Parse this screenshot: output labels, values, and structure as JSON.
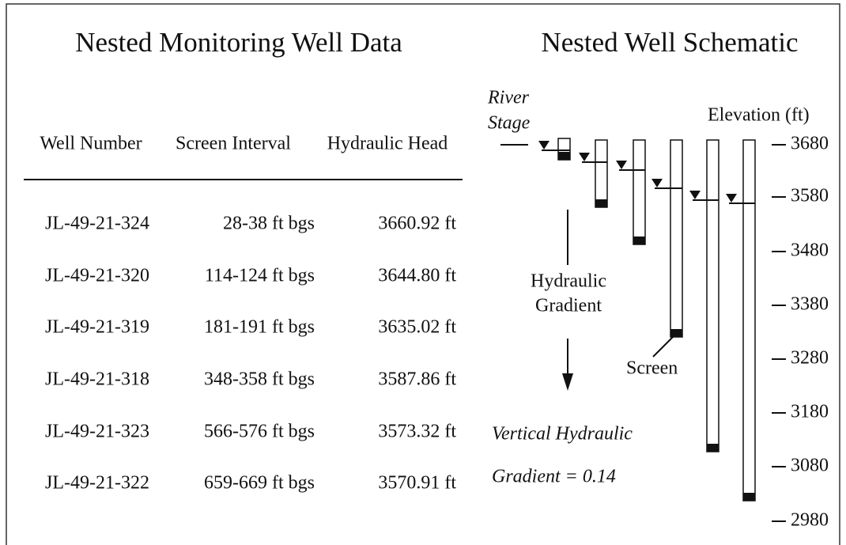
{
  "table": {
    "title": "Nested Monitoring Well Data",
    "columns": [
      "Well Number",
      "Screen Interval",
      "Hydraulic Head"
    ],
    "rows": [
      [
        "JL-49-21-324",
        "28-38 ft bgs",
        "3660.92 ft"
      ],
      [
        "JL-49-21-320",
        "114-124 ft bgs",
        "3644.80 ft"
      ],
      [
        "JL-49-21-319",
        "181-191 ft bgs",
        "3635.02 ft"
      ],
      [
        "JL-49-21-318",
        "348-358 ft bgs",
        "3587.86 ft"
      ],
      [
        "JL-49-21-323",
        "566-576 ft bgs",
        "3573.32 ft"
      ],
      [
        "JL-49-21-322",
        "659-669 ft bgs",
        "3570.91 ft"
      ]
    ]
  },
  "schematic": {
    "title": "Nested Well Schematic",
    "river_label": [
      "River",
      "Stage"
    ],
    "elevation_label": "Elevation (ft)",
    "elevations": [
      "3680",
      "3580",
      "3480",
      "3380",
      "3280",
      "3180",
      "3080",
      "2980"
    ],
    "gradient_label": [
      "Hydraulic",
      "Gradient"
    ],
    "screen_label": "Screen",
    "note": [
      "Vertical Hydraulic",
      "Gradient = 0.14"
    ]
  }
}
